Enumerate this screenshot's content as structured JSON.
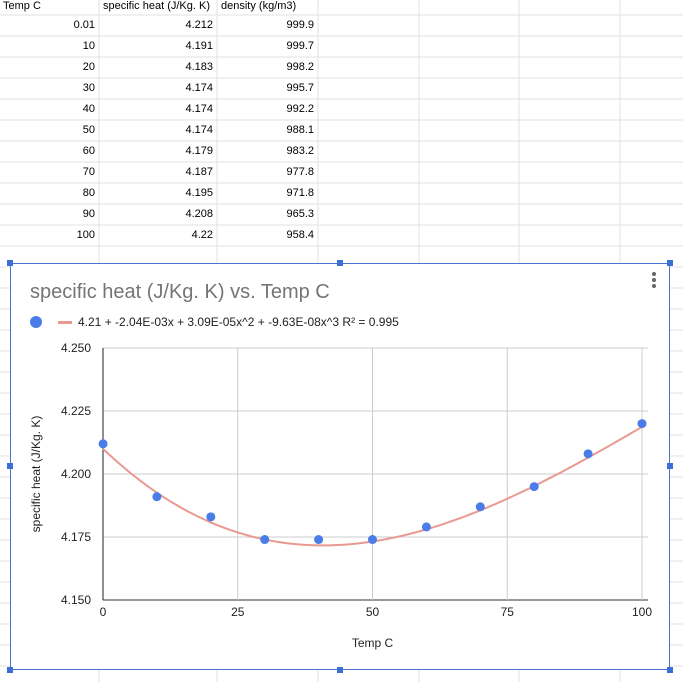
{
  "sheet": {
    "headers": [
      "Temp C",
      "specific heat (J/Kg. K)",
      "density (kg/m3)"
    ],
    "rows": [
      [
        "0.01",
        "4.212",
        "999.9"
      ],
      [
        "10",
        "4.191",
        "999.7"
      ],
      [
        "20",
        "4.183",
        "998.2"
      ],
      [
        "30",
        "4.174",
        "995.7"
      ],
      [
        "40",
        "4.174",
        "992.2"
      ],
      [
        "50",
        "4.174",
        "988.1"
      ],
      [
        "60",
        "4.179",
        "983.2"
      ],
      [
        "70",
        "4.187",
        "977.8"
      ],
      [
        "80",
        "4.195",
        "971.8"
      ],
      [
        "90",
        "4.208",
        "965.3"
      ],
      [
        "100",
        "4.22",
        "958.4"
      ]
    ]
  },
  "chart_data": {
    "type": "scatter",
    "title": "specific heat (J/Kg. K) vs. Temp C",
    "xlabel": "Temp C",
    "ylabel": "specific heat (J/Kg. K)",
    "xlim": [
      0,
      100
    ],
    "ylim": [
      4.15,
      4.25
    ],
    "xticks": [
      "0",
      "25",
      "50",
      "75",
      "100"
    ],
    "yticks": [
      "4.250",
      "4.225",
      "4.200",
      "4.175",
      "4.150"
    ],
    "grid": true,
    "legend_position": "top",
    "series": [
      {
        "x": [
          0.01,
          10,
          20,
          30,
          40,
          50,
          60,
          70,
          80,
          90,
          100
        ],
        "y": [
          4.212,
          4.191,
          4.183,
          4.174,
          4.174,
          4.174,
          4.179,
          4.187,
          4.195,
          4.208,
          4.22
        ],
        "color": "#4a7de8"
      }
    ],
    "trendline": {
      "label": "4.21 + -2.04E-03x + 3.09E-05x^2 + -9.63E-08x^3 R² = 0.995",
      "coefficients": [
        4.21,
        -0.00204,
        3.09e-05,
        -9.63e-08
      ],
      "color": "#ea9990"
    }
  }
}
